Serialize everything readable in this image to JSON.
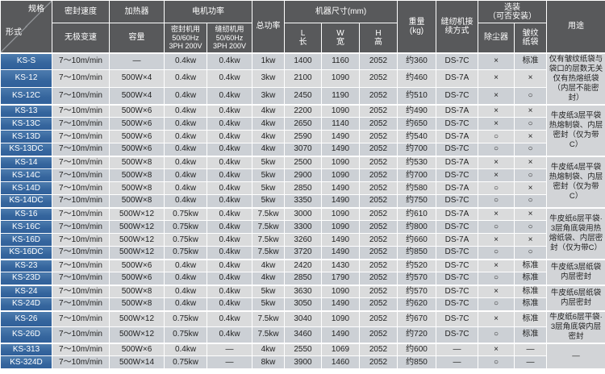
{
  "header": {
    "corner_top": "规格",
    "corner_bottom": "形式",
    "speed": "密封速度",
    "speed_sub": "无极变速",
    "heater": "加热器",
    "heater_sub": "容量",
    "motor": "电机功率",
    "motor_seal": "密封机用\n50/60Hz\n3PH 200V",
    "motor_sew": "缝纫机用\n50/60Hz\n3PH 200V",
    "total_power": "总功率",
    "size": "机器尺寸(mm)",
    "size_l": "L\n长",
    "size_w": "W\n宽",
    "size_h": "H\n高",
    "weight": "重量\n(kg)",
    "connect": "缝纫机接\n续方式",
    "options": "选装\n（可否安装）",
    "options_dust": "除尘器",
    "options_crepe": "皱纹\n纸袋",
    "usage": "用途"
  },
  "colors": {
    "header_bg": "#58595b",
    "model_bg": "#35659d",
    "row_dark": "#ccd0d5",
    "row_light": "#dadbdc",
    "border": "#ffffff"
  },
  "rows": [
    {
      "model": "KS-S",
      "cells": [
        "7～10m/min",
        "—",
        "0.4kw",
        "0.4kw",
        "1kw",
        "1400",
        "1160",
        "2052",
        "约360",
        "DS-7C",
        "×",
        "标准"
      ],
      "usage": "仅有皱纹纸袋与袋口的层数无关仅有热熔纸袋（内层不能密封）",
      "usage_span": 3
    },
    {
      "model": "KS-12",
      "cells": [
        "7～10m/min",
        "500W×4",
        "0.4kw",
        "0.4kw",
        "3kw",
        "2100",
        "1090",
        "2052",
        "约460",
        "DS-7A",
        "×",
        "×"
      ]
    },
    {
      "model": "KS-12C",
      "cells": [
        "7～10m/min",
        "500W×4",
        "0.4kw",
        "0.4kw",
        "3kw",
        "2450",
        "1190",
        "2052",
        "约510",
        "DS-7C",
        "×",
        "○"
      ]
    },
    {
      "model": "KS-13",
      "cells": [
        "7～10m/min",
        "500W×6",
        "0.4kw",
        "0.4kw",
        "4kw",
        "2200",
        "1090",
        "2052",
        "约490",
        "DS-7A",
        "×",
        "×"
      ],
      "usage": "牛皮纸3层平袋热熔制袋、内层密封（仅为带C）",
      "usage_span": 4
    },
    {
      "model": "KS-13C",
      "cells": [
        "7～10m/min",
        "500W×6",
        "0.4kw",
        "0.4kw",
        "4kw",
        "2650",
        "1140",
        "2052",
        "约650",
        "DS-7C",
        "×",
        "○"
      ]
    },
    {
      "model": "KS-13D",
      "cells": [
        "7～10m/min",
        "500W×6",
        "0.4kw",
        "0.4kw",
        "4kw",
        "2590",
        "1490",
        "2052",
        "约540",
        "DS-7A",
        "○",
        "×"
      ]
    },
    {
      "model": "KS-13DC",
      "cells": [
        "7～10m/min",
        "500W×6",
        "0.4kw",
        "0.4kw",
        "4kw",
        "3070",
        "1490",
        "2052",
        "约700",
        "DS-7C",
        "○",
        "○"
      ]
    },
    {
      "model": "KS-14",
      "cells": [
        "7～10m/min",
        "500W×8",
        "0.4kw",
        "0.4kw",
        "5kw",
        "2500",
        "1090",
        "2052",
        "约530",
        "DS-7A",
        "×",
        "×"
      ],
      "usage": "牛皮纸4层平袋热熔制袋、内层密封（仅为带C）",
      "usage_span": 4
    },
    {
      "model": "KS-14C",
      "cells": [
        "7～10m/min",
        "500W×8",
        "0.4kw",
        "0.4kw",
        "5kw",
        "2900",
        "1090",
        "2052",
        "约700",
        "DS-7C",
        "×",
        "○"
      ]
    },
    {
      "model": "KS-14D",
      "cells": [
        "7～10m/min",
        "500W×8",
        "0.4kw",
        "0.4kw",
        "5kw",
        "2850",
        "1490",
        "2052",
        "约580",
        "DS-7A",
        "○",
        "×"
      ]
    },
    {
      "model": "KS-14DC",
      "cells": [
        "7～10m/min",
        "500W×8",
        "0.4kw",
        "0.4kw",
        "5kw",
        "3350",
        "1490",
        "2052",
        "约750",
        "DS-7C",
        "○",
        "○"
      ]
    },
    {
      "model": "KS-16",
      "cells": [
        "7～10m/min",
        "500W×12",
        "0.75kw",
        "0.4kw",
        "7.5kw",
        "3000",
        "1090",
        "2052",
        "约610",
        "DS-7A",
        "×",
        "×"
      ],
      "usage": "牛皮纸6层平袋·3层角底袋用热熔纸袋、内层密封（仅为带C）",
      "usage_span": 4
    },
    {
      "model": "KS-16C",
      "cells": [
        "7～10m/min",
        "500W×12",
        "0.75kw",
        "0.4kw",
        "7.5kw",
        "3300",
        "1090",
        "2052",
        "约800",
        "DS-7C",
        "○",
        "○"
      ]
    },
    {
      "model": "KS-16D",
      "cells": [
        "7～10m/min",
        "500W×12",
        "0.75kw",
        "0.4kw",
        "7.5kw",
        "3260",
        "1490",
        "2052",
        "约660",
        "DS-7A",
        "×",
        "×"
      ]
    },
    {
      "model": "KS-16DC",
      "cells": [
        "7～10m/min",
        "500W×12",
        "0.75kw",
        "0.4kw",
        "7.5kw",
        "3720",
        "1490",
        "2052",
        "约850",
        "DS-7C",
        "○",
        "○"
      ]
    },
    {
      "model": "KS-23",
      "cells": [
        "7～10m/min",
        "500W×6",
        "0.4kw",
        "0.4kw",
        "4kw",
        "2420",
        "1430",
        "2052",
        "约520",
        "DS-7C",
        "×",
        "标准"
      ],
      "usage": "牛皮纸3层纸袋内层密封",
      "usage_span": 2
    },
    {
      "model": "KS-23D",
      "cells": [
        "7～10m/min",
        "500W×6",
        "0.4kw",
        "0.4kw",
        "4kw",
        "2850",
        "1790",
        "2052",
        "约570",
        "DS-7C",
        "○",
        "标准"
      ]
    },
    {
      "model": "KS-24",
      "cells": [
        "7～10m/min",
        "500W×8",
        "0.4kw",
        "0.4kw",
        "5kw",
        "3630",
        "1090",
        "2052",
        "约570",
        "DS-7C",
        "×",
        "标准"
      ],
      "usage": "牛皮纸6层纸袋内层密封",
      "usage_span": 2
    },
    {
      "model": "KS-24D",
      "cells": [
        "7～10m/min",
        "500W×8",
        "0.4kw",
        "0.4kw",
        "5kw",
        "3050",
        "1490",
        "2052",
        "约620",
        "DS-7C",
        "○",
        "标准"
      ]
    },
    {
      "model": "KS-26",
      "cells": [
        "7～10m/min",
        "500W×12",
        "0.75kw",
        "0.4kw",
        "7.5kw",
        "3040",
        "1090",
        "2052",
        "约670",
        "DS-7C",
        "×",
        "标准"
      ],
      "usage": "牛皮纸6层平袋·3层角底袋内层密封",
      "usage_span": 2
    },
    {
      "model": "KS-26D",
      "cells": [
        "7～10m/min",
        "500W×12",
        "0.75kw",
        "0.4kw",
        "7.5kw",
        "3460",
        "1490",
        "2052",
        "约720",
        "DS-7C",
        "○",
        "标准"
      ]
    },
    {
      "model": "KS-313",
      "cells": [
        "7～10m/min",
        "500W×6",
        "0.4kw",
        "—",
        "4kw",
        "2550",
        "1069",
        "2052",
        "约600",
        "—",
        "×",
        "—"
      ],
      "usage": "—",
      "usage_span": 2
    },
    {
      "model": "KS-324D",
      "cells": [
        "7～10m/min",
        "500W×14",
        "0.75kw",
        "—",
        "8kw",
        "3900",
        "1460",
        "2052",
        "约850",
        "—",
        "○",
        "—"
      ]
    }
  ]
}
